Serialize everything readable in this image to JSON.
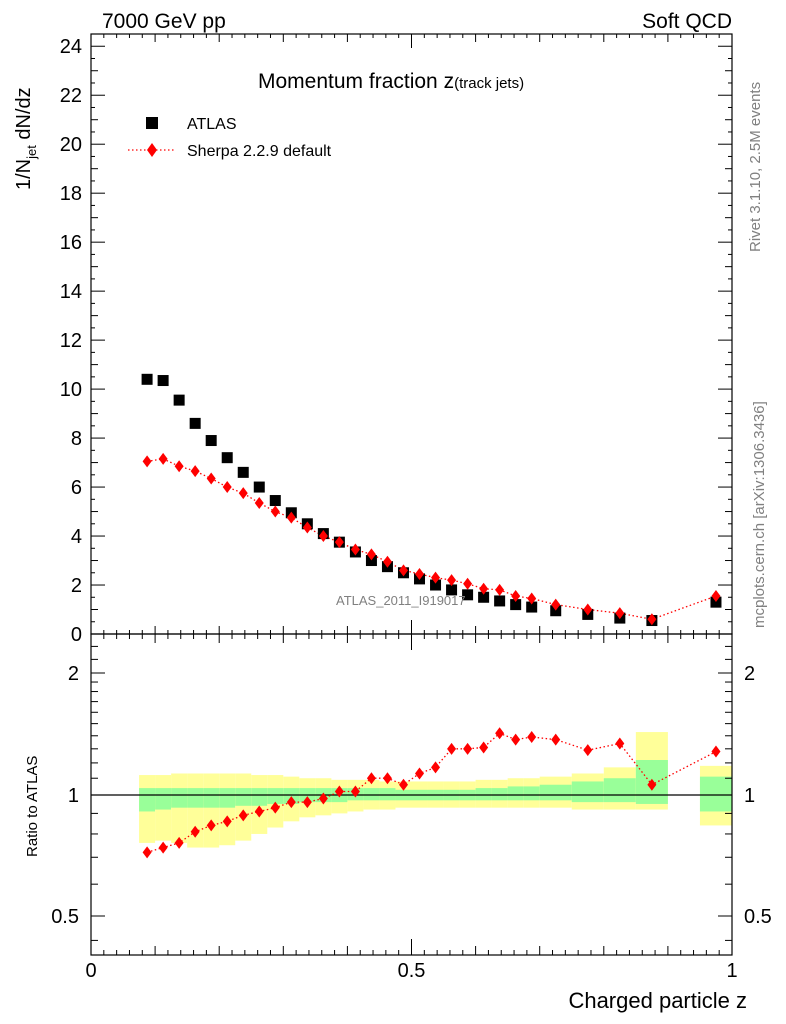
{
  "header": {
    "left": "7000 GeV pp",
    "right": "Soft QCD"
  },
  "side_labels": {
    "rivet": "Rivet 3.1.10,  2.5M events",
    "mcplots": "mcplots.cern.ch [arXiv:1306.3436]"
  },
  "watermark": "ATLAS_2011_I919017",
  "chart_data": [
    {
      "type": "scatter",
      "title_main": "Momentum fraction z",
      "title_sub": "(track jets)",
      "xlabel": "Charged particle z",
      "ylabel_main": "1/N",
      "ylabel_sub": "jet",
      "ylabel_tail": " dN/dz",
      "xlim": [
        0,
        1
      ],
      "ylim": [
        0,
        24.5
      ],
      "x_ticks": [
        "0",
        "0.5",
        "1"
      ],
      "y_ticks": [
        "0",
        "2",
        "4",
        "6",
        "8",
        "10",
        "12",
        "14",
        "16",
        "18",
        "20",
        "22",
        "24"
      ],
      "legend_position": "top-left",
      "series": [
        {
          "name": "ATLAS",
          "color": "#000000",
          "marker": "square",
          "x": [
            0.0875,
            0.1125,
            0.1375,
            0.1625,
            0.1875,
            0.2125,
            0.2375,
            0.2625,
            0.2875,
            0.3125,
            0.3375,
            0.3625,
            0.3875,
            0.4125,
            0.4375,
            0.4625,
            0.4875,
            0.5125,
            0.5375,
            0.5625,
            0.5875,
            0.6125,
            0.6375,
            0.6625,
            0.6875,
            0.725,
            0.775,
            0.825,
            0.875,
            0.975
          ],
          "y": [
            10.4,
            10.35,
            9.55,
            8.6,
            7.9,
            7.2,
            6.6,
            6.0,
            5.45,
            4.95,
            4.5,
            4.1,
            3.75,
            3.35,
            3.0,
            2.75,
            2.5,
            2.25,
            2.0,
            1.8,
            1.6,
            1.5,
            1.35,
            1.2,
            1.1,
            0.95,
            0.8,
            0.65,
            0.55,
            1.3
          ]
        },
        {
          "name": "Sherpa 2.2.9 default",
          "color": "#ff0000",
          "marker": "diamond",
          "line": "dotted",
          "x": [
            0.0875,
            0.1125,
            0.1375,
            0.1625,
            0.1875,
            0.2125,
            0.2375,
            0.2625,
            0.2875,
            0.3125,
            0.3375,
            0.3625,
            0.3875,
            0.4125,
            0.4375,
            0.4625,
            0.4875,
            0.5125,
            0.5375,
            0.5625,
            0.5875,
            0.6125,
            0.6375,
            0.6625,
            0.6875,
            0.725,
            0.775,
            0.825,
            0.875,
            0.975
          ],
          "y": [
            7.05,
            7.15,
            6.85,
            6.65,
            6.35,
            6.0,
            5.75,
            5.35,
            5.0,
            4.75,
            4.35,
            4.0,
            3.75,
            3.45,
            3.25,
            2.95,
            2.6,
            2.45,
            2.3,
            2.2,
            2.05,
            1.85,
            1.8,
            1.55,
            1.45,
            1.2,
            1.0,
            0.85,
            0.6,
            1.55
          ]
        }
      ]
    },
    {
      "type": "scatter",
      "ylabel": "Ratio to ATLAS",
      "xlim": [
        0,
        1
      ],
      "ylim": [
        0.35,
        2.3
      ],
      "y_ticks": [
        "0.5",
        "1",
        "2"
      ],
      "reference_line": 1,
      "bands": [
        {
          "x0": 0.075,
          "x1": 0.1,
          "green": [
            0.91,
            1.04
          ],
          "yellow": [
            0.76,
            1.12
          ]
        },
        {
          "x0": 0.1,
          "x1": 0.125,
          "green": [
            0.92,
            1.04
          ],
          "yellow": [
            0.77,
            1.12
          ]
        },
        {
          "x0": 0.125,
          "x1": 0.15,
          "green": [
            0.93,
            1.04
          ],
          "yellow": [
            0.76,
            1.13
          ]
        },
        {
          "x0": 0.15,
          "x1": 0.175,
          "green": [
            0.93,
            1.04
          ],
          "yellow": [
            0.74,
            1.13
          ]
        },
        {
          "x0": 0.175,
          "x1": 0.2,
          "green": [
            0.93,
            1.04
          ],
          "yellow": [
            0.74,
            1.13
          ]
        },
        {
          "x0": 0.2,
          "x1": 0.225,
          "green": [
            0.93,
            1.04
          ],
          "yellow": [
            0.75,
            1.13
          ]
        },
        {
          "x0": 0.225,
          "x1": 0.25,
          "green": [
            0.94,
            1.04
          ],
          "yellow": [
            0.77,
            1.13
          ]
        },
        {
          "x0": 0.25,
          "x1": 0.275,
          "green": [
            0.94,
            1.04
          ],
          "yellow": [
            0.8,
            1.12
          ]
        },
        {
          "x0": 0.275,
          "x1": 0.3,
          "green": [
            0.95,
            1.04
          ],
          "yellow": [
            0.83,
            1.12
          ]
        },
        {
          "x0": 0.3,
          "x1": 0.325,
          "green": [
            0.95,
            1.04
          ],
          "yellow": [
            0.86,
            1.11
          ]
        },
        {
          "x0": 0.325,
          "x1": 0.35,
          "green": [
            0.96,
            1.04
          ],
          "yellow": [
            0.88,
            1.1
          ]
        },
        {
          "x0": 0.35,
          "x1": 0.375,
          "green": [
            0.96,
            1.04
          ],
          "yellow": [
            0.89,
            1.1
          ]
        },
        {
          "x0": 0.375,
          "x1": 0.4,
          "green": [
            0.96,
            1.04
          ],
          "yellow": [
            0.9,
            1.09
          ]
        },
        {
          "x0": 0.4,
          "x1": 0.425,
          "green": [
            0.97,
            1.04
          ],
          "yellow": [
            0.91,
            1.09
          ]
        },
        {
          "x0": 0.425,
          "x1": 0.45,
          "green": [
            0.97,
            1.04
          ],
          "yellow": [
            0.92,
            1.09
          ]
        },
        {
          "x0": 0.45,
          "x1": 0.475,
          "green": [
            0.97,
            1.04
          ],
          "yellow": [
            0.92,
            1.08
          ]
        },
        {
          "x0": 0.475,
          "x1": 0.5,
          "green": [
            0.97,
            1.03
          ],
          "yellow": [
            0.93,
            1.08
          ]
        },
        {
          "x0": 0.5,
          "x1": 0.525,
          "green": [
            0.97,
            1.03
          ],
          "yellow": [
            0.93,
            1.08
          ]
        },
        {
          "x0": 0.525,
          "x1": 0.55,
          "green": [
            0.97,
            1.03
          ],
          "yellow": [
            0.93,
            1.08
          ]
        },
        {
          "x0": 0.55,
          "x1": 0.575,
          "green": [
            0.97,
            1.03
          ],
          "yellow": [
            0.93,
            1.08
          ]
        },
        {
          "x0": 0.575,
          "x1": 0.6,
          "green": [
            0.97,
            1.03
          ],
          "yellow": [
            0.93,
            1.08
          ]
        },
        {
          "x0": 0.6,
          "x1": 0.625,
          "green": [
            0.97,
            1.04
          ],
          "yellow": [
            0.93,
            1.09
          ]
        },
        {
          "x0": 0.625,
          "x1": 0.65,
          "green": [
            0.97,
            1.04
          ],
          "yellow": [
            0.93,
            1.09
          ]
        },
        {
          "x0": 0.65,
          "x1": 0.675,
          "green": [
            0.97,
            1.05
          ],
          "yellow": [
            0.93,
            1.1
          ]
        },
        {
          "x0": 0.675,
          "x1": 0.7,
          "green": [
            0.97,
            1.05
          ],
          "yellow": [
            0.93,
            1.1
          ]
        },
        {
          "x0": 0.7,
          "x1": 0.75,
          "green": [
            0.97,
            1.06
          ],
          "yellow": [
            0.93,
            1.11
          ]
        },
        {
          "x0": 0.75,
          "x1": 0.8,
          "green": [
            0.96,
            1.08
          ],
          "yellow": [
            0.92,
            1.13
          ]
        },
        {
          "x0": 0.8,
          "x1": 0.85,
          "green": [
            0.96,
            1.1
          ],
          "yellow": [
            0.92,
            1.17
          ]
        },
        {
          "x0": 0.85,
          "x1": 0.9,
          "green": [
            0.95,
            1.22
          ],
          "yellow": [
            0.92,
            1.43
          ]
        },
        {
          "x0": 0.95,
          "x1": 1.0,
          "green": [
            0.91,
            1.11
          ],
          "yellow": [
            0.84,
            1.18
          ]
        }
      ],
      "series": [
        {
          "name": "Sherpa 2.2.9 default",
          "color": "#ff0000",
          "marker": "diamond",
          "line": "dotted",
          "x": [
            0.0875,
            0.1125,
            0.1375,
            0.1625,
            0.1875,
            0.2125,
            0.2375,
            0.2625,
            0.2875,
            0.3125,
            0.3375,
            0.3625,
            0.3875,
            0.4125,
            0.4375,
            0.4625,
            0.4875,
            0.5125,
            0.5375,
            0.5625,
            0.5875,
            0.6125,
            0.6375,
            0.6625,
            0.6875,
            0.725,
            0.775,
            0.825,
            0.875,
            0.975
          ],
          "y": [
            0.72,
            0.74,
            0.76,
            0.81,
            0.84,
            0.86,
            0.89,
            0.91,
            0.93,
            0.96,
            0.96,
            0.98,
            1.02,
            1.02,
            1.1,
            1.1,
            1.06,
            1.13,
            1.17,
            1.3,
            1.3,
            1.31,
            1.42,
            1.37,
            1.39,
            1.37,
            1.29,
            1.34,
            1.06,
            1.28
          ]
        }
      ]
    }
  ]
}
